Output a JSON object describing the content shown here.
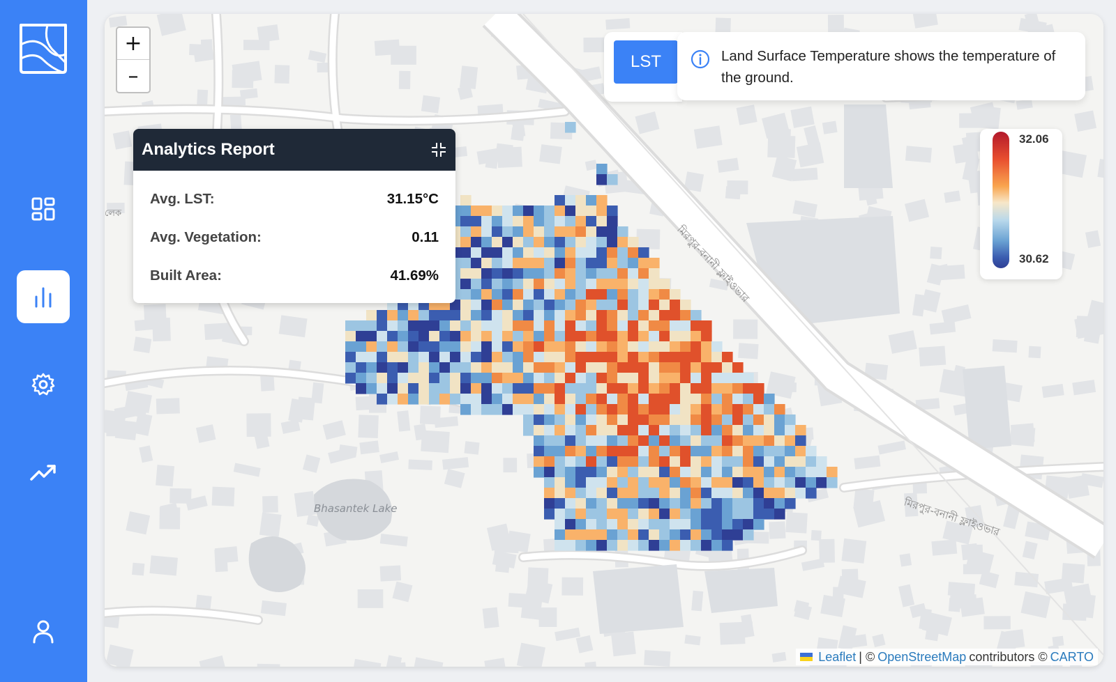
{
  "sidebar": {
    "items": [
      {
        "name": "dashboard",
        "icon": "dashboard-grid-icon",
        "active": false
      },
      {
        "name": "analytics",
        "icon": "bar-chart-icon",
        "active": true
      },
      {
        "name": "settings",
        "icon": "gear-icon",
        "active": false
      },
      {
        "name": "trends",
        "icon": "trending-up-icon",
        "active": false
      },
      {
        "name": "profile",
        "icon": "user-icon",
        "active": false
      }
    ],
    "accent": "#3b82f6"
  },
  "zoom": {
    "in_label": "+",
    "out_label": "–"
  },
  "layer": {
    "button_label": "LST",
    "info_icon": "info-icon",
    "info_text": "Land Surface Temperature shows the temperature of the ground."
  },
  "report": {
    "title": "Analytics Report",
    "rows": [
      {
        "label": "Avg. LST:",
        "value": "31.15°C"
      },
      {
        "label": "Avg. Vegetation:",
        "value": "0.11"
      },
      {
        "label": "Built Area:",
        "value": "41.69%"
      }
    ]
  },
  "legend": {
    "max": "32.06",
    "min": "30.62",
    "colors": [
      "#b2182b",
      "#f9a54f",
      "#f7e7c8",
      "#6aa2d3",
      "#2f3f95"
    ]
  },
  "map_labels": {
    "lake": "Bhasantek Lake",
    "road_1": "মিরপুর-বনানী ফ্লাইওভার",
    "road_2": "মিরপুর-বনানী ফ্লাইওভার",
    "edge": "লেক"
  },
  "attribution": {
    "leaflet": "Leaflet",
    "sep1": "| ©",
    "osm": "OpenStreetMap",
    "contrib": "contributors ©",
    "carto": "CARTO"
  }
}
